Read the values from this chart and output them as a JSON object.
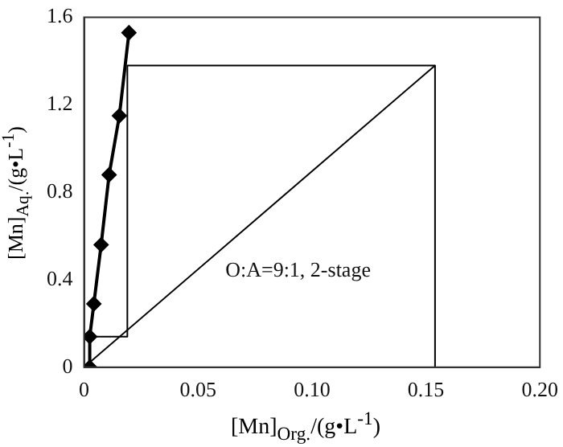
{
  "chart_data": {
    "type": "line",
    "xlabel": "[Mn]$_{Org.}$/(g•L$^{-1}$)",
    "ylabel": "[Mn]$_{Aq.}$/(g•L$^{-1}$)",
    "annotations": [
      "O:A=9:1, 2-stage"
    ],
    "series": [
      {
        "color": "#000000",
        "marker": "diamond",
        "x": [
          0.0025,
          0.0025,
          0.0043,
          0.0075,
          0.011,
          0.0155,
          0.0197
        ],
        "values": [
          0,
          0.14,
          0.29,
          0.56,
          0.88,
          1.15,
          1.53
        ]
      },
      {
        "color": "#000000",
        "marker": "none",
        "x": [
          0,
          0.154
        ],
        "values": [
          0,
          1.38
        ]
      },
      {
        "color": "#000000",
        "marker": "none",
        "x": [
          0.154,
          0.154,
          0.019,
          0.019,
          0.0025
        ],
        "values": [
          0,
          1.38,
          1.38,
          0.14,
          0.14
        ]
      }
    ],
    "xlim": [
      0,
      0.2
    ],
    "xticks": [
      0,
      {
        "value": 0.05,
        "label": "0.05"
      },
      {
        "value": 0.1,
        "label": "0.10"
      },
      {
        "value": 0.15,
        "label": "0.15"
      },
      {
        "value": 0.2,
        "label": "0.20"
      }
    ],
    "ylim": [
      0,
      1.6
    ],
    "yticks": [
      0,
      0.4,
      0.8,
      1.2,
      1.6
    ],
    "grid": false,
    "legend": false
  }
}
